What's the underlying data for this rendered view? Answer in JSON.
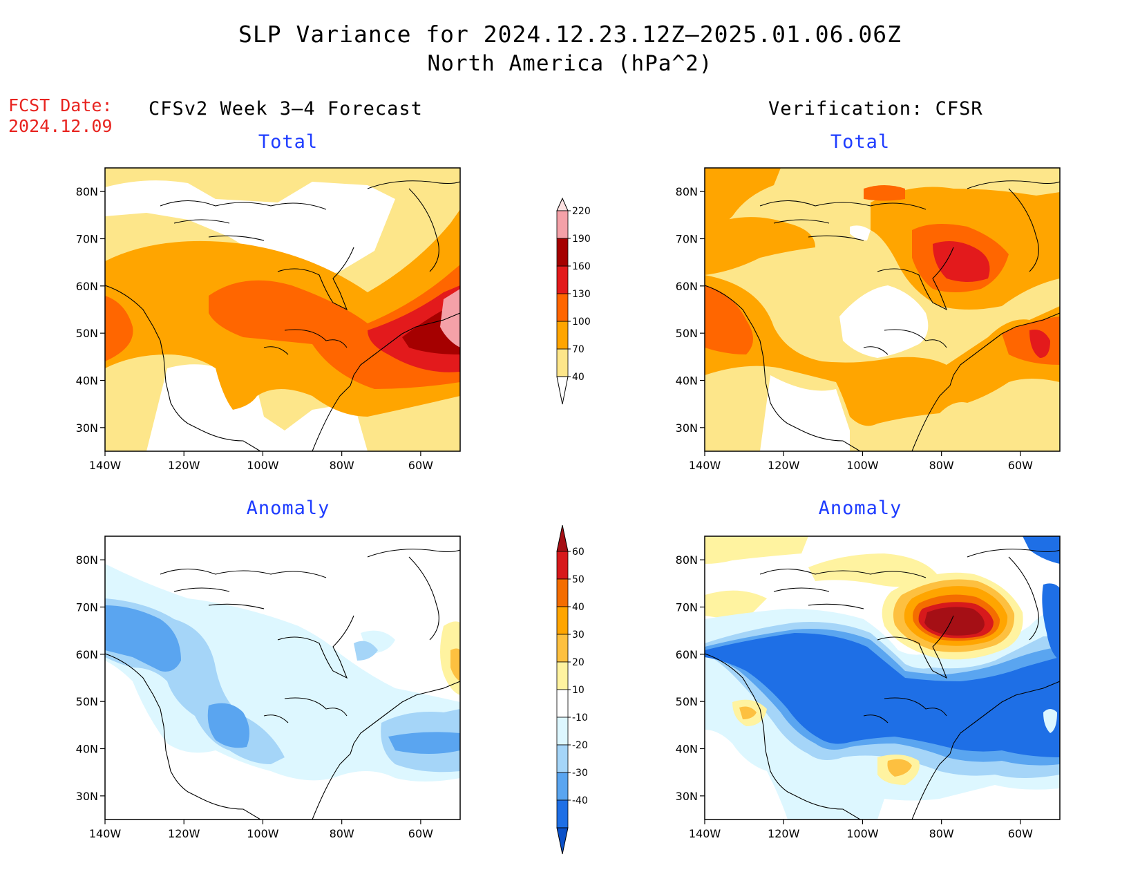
{
  "title": "SLP Variance for 2024.12.23.12Z–2025.01.06.06Z",
  "subtitle": "North America (hPa^2)",
  "fcst_date": {
    "label": "FCST Date:",
    "value": "2024.12.09"
  },
  "left_header": "CFSv2 Week 3–4 Forecast",
  "right_header": "Verification: CFSR",
  "panels": {
    "fc_total": {
      "title": "Total"
    },
    "ver_total": {
      "title": "Total"
    },
    "fc_anom": {
      "title": "Anomaly"
    },
    "ver_anom": {
      "title": "Anomaly"
    }
  },
  "axes": {
    "lat_labels": [
      "80N",
      "70N",
      "60N",
      "50N",
      "40N",
      "30N"
    ],
    "lat_values": [
      80,
      70,
      60,
      50,
      40,
      30
    ],
    "lon_labels": [
      "140W",
      "120W",
      "100W",
      "80W",
      "60W"
    ],
    "lon_values": [
      -140,
      -120,
      -100,
      -80,
      -60
    ],
    "lon_range": [
      -140,
      -50
    ],
    "lat_range": [
      25,
      85
    ]
  },
  "colorbar_total": {
    "levels": [
      "40",
      "70",
      "100",
      "130",
      "160",
      "190",
      "220"
    ],
    "colors": [
      "#fde68a",
      "#ffa500",
      "#ff6600",
      "#e31a1c",
      "#a50000",
      "#f4a1a8",
      "#fde0e0"
    ]
  },
  "colorbar_anom": {
    "levels": [
      "60",
      "50",
      "40",
      "30",
      "20",
      "10",
      "-10",
      "-20",
      "-30",
      "-40"
    ],
    "colors": [
      "#a50f15",
      "#d7191c",
      "#f46d00",
      "#ffa500",
      "#fdc040",
      "#fff3a0",
      "#ffffff",
      "#ddf7ff",
      "#a5d5f8",
      "#5aa5f0",
      "#1e6fe6",
      "#0a50c8"
    ]
  },
  "colors": {
    "fcst_text": "#e8231f",
    "panel_title": "#1e3cff"
  }
}
